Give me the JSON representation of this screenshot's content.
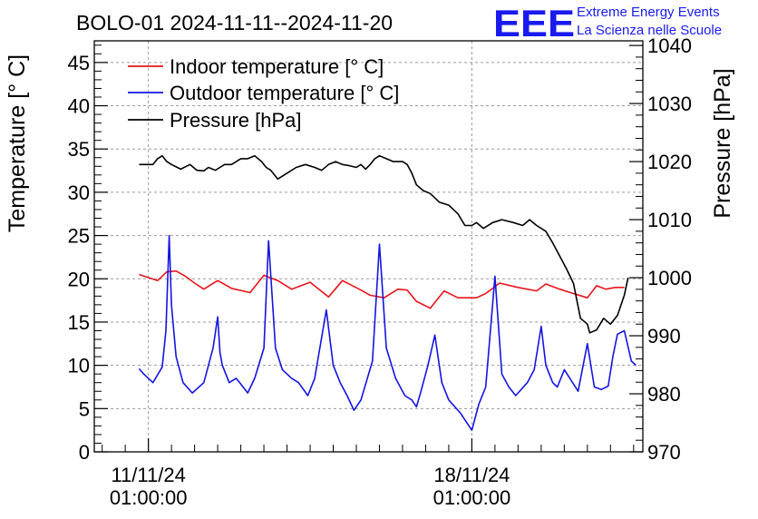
{
  "header": {
    "title": "BOLO-01 2024-11-11--2024-11-20",
    "logo_text": "EEE",
    "logo_line1": "Extreme Energy Events",
    "logo_line2": "La Scienza nelle Scuole"
  },
  "colors": {
    "indoor": "#e8141c",
    "outdoor": "#1414e0",
    "pressure": "#000000",
    "logo": "#1a1aee",
    "grid": "#9a9a9a"
  },
  "chart_data": {
    "type": "line",
    "title": "BOLO-01 2024-11-11--2024-11-20",
    "xlabel": "",
    "ylabel": "Temperature [° C]",
    "ylabel_right": "Pressure [hPa]",
    "x_unit": "days since 2024-11-11 01:00:00",
    "xlim": [
      -1.17,
      10.7
    ],
    "ylim": [
      0,
      47.5
    ],
    "ylim_right": [
      970,
      1040.8
    ],
    "x_ticks": [
      {
        "x": 0,
        "line1": "11/11/24",
        "line2": "01:00:00"
      },
      {
        "x": 7,
        "line1": "18/11/24",
        "line2": "01:00:00"
      }
    ],
    "y_ticks": [
      0,
      5,
      10,
      15,
      20,
      25,
      30,
      35,
      40,
      45
    ],
    "y_ticks_right": [
      970,
      980,
      990,
      1000,
      1010,
      1020,
      1030,
      1040
    ],
    "grid": true,
    "legend_position": "top-left",
    "series": [
      {
        "name": "Indoor temperature [° C]",
        "axis": "left",
        "x": [
          -0.2,
          0.2,
          0.4,
          0.6,
          0.8,
          1.0,
          1.2,
          1.5,
          1.8,
          2.2,
          2.5,
          2.8,
          3.1,
          3.5,
          3.9,
          4.2,
          4.6,
          4.8,
          5.1,
          5.4,
          5.6,
          5.8,
          6.1,
          6.4,
          6.7,
          7.1,
          7.3,
          7.6,
          8.0,
          8.4,
          8.6,
          8.9,
          9.2,
          9.5,
          9.7,
          9.9,
          10.1,
          10.3
        ],
        "values": [
          20.5,
          19.8,
          20.8,
          20.9,
          20.3,
          19.5,
          18.8,
          19.8,
          18.9,
          18.4,
          20.4,
          19.8,
          18.8,
          19.6,
          17.9,
          19.8,
          18.7,
          18.1,
          17.8,
          18.8,
          18.7,
          17.4,
          16.6,
          18.6,
          17.8,
          17.8,
          18.3,
          19.5,
          19.0,
          18.6,
          19.4,
          18.8,
          18.3,
          17.8,
          19.2,
          18.8,
          19.0,
          19.0
        ]
      },
      {
        "name": "Outdoor temperature [° C]",
        "axis": "left",
        "x": [
          -0.2,
          -0.1,
          0.1,
          0.3,
          0.38,
          0.45,
          0.5,
          0.6,
          0.75,
          0.95,
          1.2,
          1.4,
          1.5,
          1.55,
          1.6,
          1.75,
          1.9,
          2.05,
          2.15,
          2.3,
          2.5,
          2.6,
          2.75,
          2.9,
          3.1,
          3.25,
          3.45,
          3.6,
          3.85,
          4.0,
          4.15,
          4.3,
          4.45,
          4.6,
          4.85,
          5.0,
          5.15,
          5.35,
          5.55,
          5.7,
          5.8,
          5.9,
          6.05,
          6.2,
          6.35,
          6.5,
          6.75,
          7.0,
          7.15,
          7.3,
          7.5,
          7.65,
          7.8,
          7.95,
          8.2,
          8.35,
          8.5,
          8.6,
          8.75,
          8.85,
          9.0,
          9.3,
          9.5,
          9.65,
          9.8,
          9.95,
          10.05,
          10.15,
          10.3,
          10.45,
          10.55
        ],
        "values": [
          9.6,
          9.0,
          8.0,
          9.8,
          14.0,
          25.0,
          17.0,
          11.0,
          8.0,
          6.8,
          8.0,
          12.0,
          15.6,
          11.5,
          10.0,
          8.0,
          8.5,
          7.5,
          6.8,
          8.5,
          12.0,
          24.4,
          12.0,
          9.5,
          8.5,
          8.0,
          6.5,
          8.5,
          16.4,
          10.0,
          8.0,
          6.5,
          4.8,
          6.0,
          10.5,
          24.0,
          12.0,
          8.5,
          6.5,
          6.0,
          5.2,
          7.0,
          10.0,
          13.5,
          8.0,
          6.0,
          4.5,
          2.5,
          5.5,
          7.5,
          20.3,
          9.0,
          7.5,
          6.5,
          8.0,
          9.5,
          14.5,
          10.0,
          8.0,
          7.5,
          9.5,
          7.0,
          12.5,
          7.5,
          7.2,
          7.6,
          11.0,
          13.6,
          14.0,
          10.5,
          10.0
        ]
      },
      {
        "name": "Pressure [hPa]",
        "axis": "right",
        "x": [
          -0.2,
          0.1,
          0.2,
          0.3,
          0.4,
          0.5,
          0.7,
          0.9,
          1.05,
          1.2,
          1.3,
          1.45,
          1.55,
          1.65,
          1.8,
          2.0,
          2.15,
          2.3,
          2.45,
          2.55,
          2.65,
          2.8,
          3.0,
          3.2,
          3.4,
          3.6,
          3.75,
          3.9,
          4.05,
          4.2,
          4.35,
          4.5,
          4.6,
          4.7,
          4.8,
          4.9,
          5.0,
          5.15,
          5.3,
          5.5,
          5.6,
          5.7,
          5.8,
          5.95,
          6.1,
          6.3,
          6.5,
          6.7,
          6.85,
          7.0,
          7.1,
          7.25,
          7.45,
          7.65,
          7.9,
          8.1,
          8.25,
          8.4,
          8.6,
          8.75,
          8.95,
          9.05,
          9.2,
          9.35,
          9.5,
          9.55,
          9.7,
          9.85,
          10.0,
          10.15,
          10.3,
          10.38
        ],
        "values": [
          1019.5,
          1019.5,
          1020.5,
          1021.0,
          1020.0,
          1019.5,
          1018.7,
          1019.5,
          1018.5,
          1018.4,
          1019.0,
          1018.5,
          1019.0,
          1019.5,
          1019.5,
          1020.5,
          1020.5,
          1021.0,
          1020.0,
          1019.0,
          1018.5,
          1017.0,
          1018.0,
          1019.0,
          1019.5,
          1019.0,
          1018.5,
          1019.5,
          1020.0,
          1019.5,
          1019.3,
          1019.0,
          1019.5,
          1018.7,
          1019.5,
          1020.5,
          1021.0,
          1020.5,
          1020.0,
          1020.0,
          1019.5,
          1018.0,
          1016.0,
          1015.0,
          1014.5,
          1013.0,
          1012.5,
          1011.0,
          1009.0,
          1009.0,
          1009.5,
          1008.5,
          1009.5,
          1010.0,
          1009.5,
          1009.0,
          1010.0,
          1009.0,
          1008.0,
          1006.0,
          1003.0,
          1001.5,
          999.0,
          993.0,
          992.0,
          990.5,
          991.0,
          993.0,
          992.0,
          993.5,
          997.0,
          1000.0
        ]
      }
    ]
  }
}
